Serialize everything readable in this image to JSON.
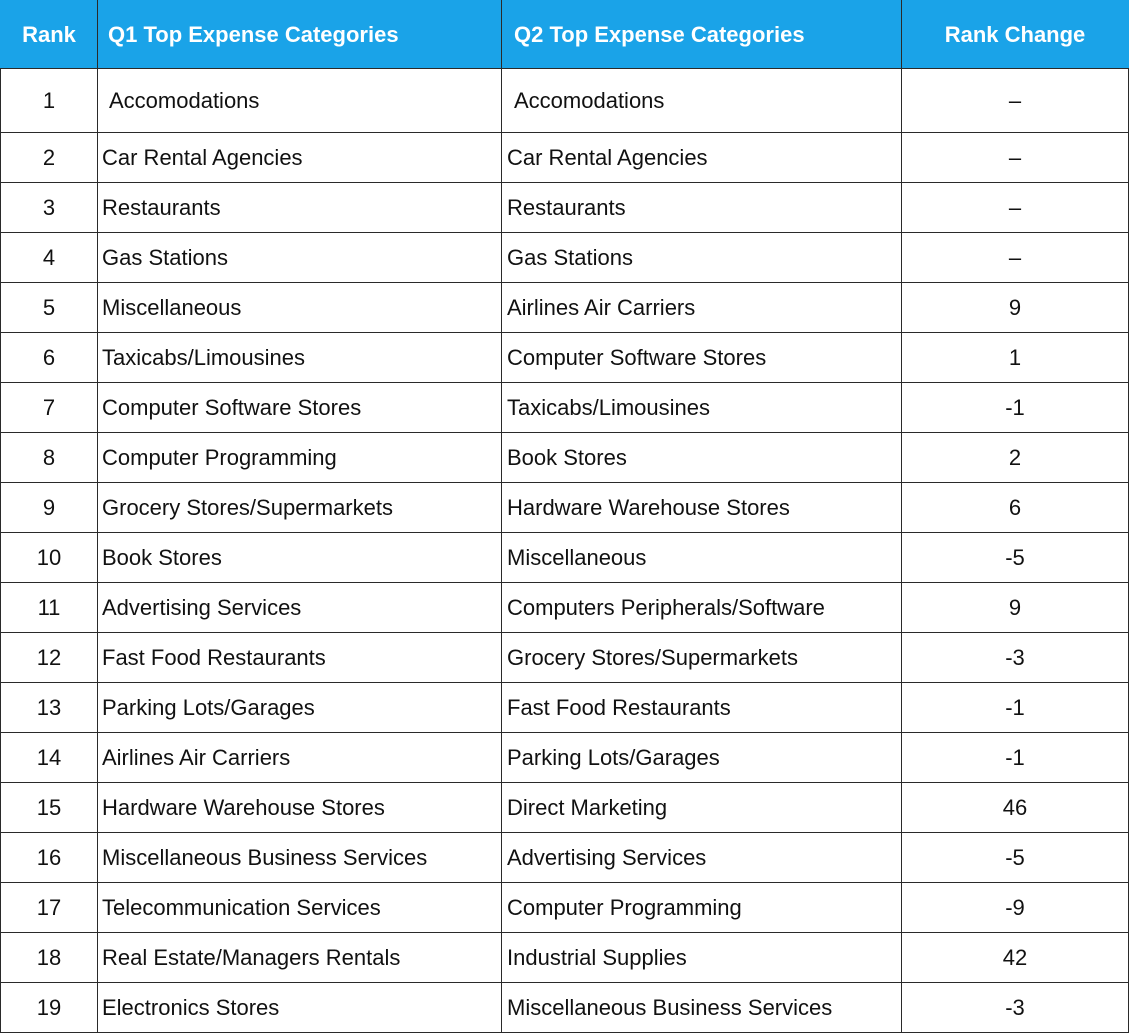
{
  "table": {
    "headers": {
      "rank": "Rank",
      "q1": "Q1 Top Expense Categories",
      "q2": "Q2 Top Expense Categories",
      "change": "Rank Change"
    },
    "header_color": "#1aa3e8",
    "rows": [
      {
        "rank": "1",
        "q1": "Accomodations",
        "q2": "Accomodations",
        "change": "–"
      },
      {
        "rank": "2",
        "q1": "Car Rental Agencies",
        "q2": "Car Rental Agencies",
        "change": "–"
      },
      {
        "rank": "3",
        "q1": "Restaurants",
        "q2": "Restaurants",
        "change": "–"
      },
      {
        "rank": "4",
        "q1": "Gas Stations",
        "q2": "Gas Stations",
        "change": "–"
      },
      {
        "rank": "5",
        "q1": "Miscellaneous",
        "q2": "Airlines Air Carriers",
        "change": "9"
      },
      {
        "rank": "6",
        "q1": "Taxicabs/Limousines",
        "q2": "Computer Software Stores",
        "change": "1"
      },
      {
        "rank": "7",
        "q1": "Computer Software Stores",
        "q2": "Taxicabs/Limousines",
        "change": "-1"
      },
      {
        "rank": "8",
        "q1": "Computer Programming",
        "q2": "Book Stores",
        "change": "2"
      },
      {
        "rank": "9",
        "q1": "Grocery Stores/Supermarkets",
        "q2": "Hardware Warehouse Stores",
        "change": "6"
      },
      {
        "rank": "10",
        "q1": "Book Stores",
        "q2": "Miscellaneous",
        "change": "-5"
      },
      {
        "rank": "11",
        "q1": "Advertising Services",
        "q2": "Computers Peripherals/Software",
        "change": "9"
      },
      {
        "rank": "12",
        "q1": "Fast Food Restaurants",
        "q2": "Grocery Stores/Supermarkets",
        "change": "-3"
      },
      {
        "rank": "13",
        "q1": "Parking Lots/Garages",
        "q2": "Fast Food Restaurants",
        "change": "-1"
      },
      {
        "rank": "14",
        "q1": "Airlines Air Carriers",
        "q2": "Parking Lots/Garages",
        "change": "-1"
      },
      {
        "rank": "15",
        "q1": "Hardware Warehouse Stores",
        "q2": "Direct Marketing",
        "change": "46"
      },
      {
        "rank": "16",
        "q1": "Miscellaneous Business Services",
        "q2": "Advertising Services",
        "change": "-5"
      },
      {
        "rank": "17",
        "q1": "Telecommunication Services",
        "q2": "Computer Programming",
        "change": "-9"
      },
      {
        "rank": "18",
        "q1": "Real Estate/Managers Rentals",
        "q2": "Industrial Supplies",
        "change": "42"
      },
      {
        "rank": "19",
        "q1": "Electronics Stores",
        "q2": "Miscellaneous Business Services",
        "change": "-3"
      }
    ]
  }
}
